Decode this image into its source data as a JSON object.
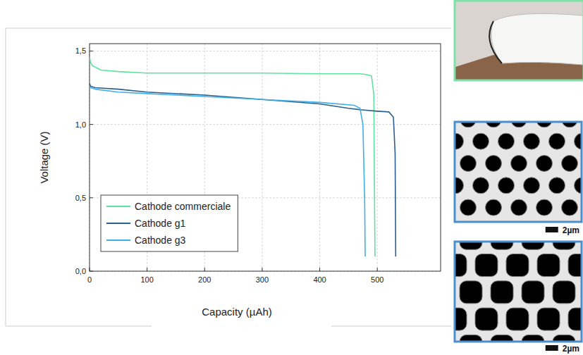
{
  "chart_data": {
    "type": "line",
    "x_label": "Capacity (µAh)",
    "y_label": "Voltage (V)",
    "xlim": [
      0,
      610
    ],
    "ylim": [
      0,
      1.55
    ],
    "xticks": [
      0,
      100,
      200,
      300,
      400,
      500
    ],
    "yticks": [
      {
        "value": 0,
        "label": "0,0"
      },
      {
        "value": 0.5,
        "label": "0,5"
      },
      {
        "value": 1.0,
        "label": "1,0"
      },
      {
        "value": 1.5,
        "label": "1,5"
      }
    ],
    "grid": true,
    "legend": "lower left",
    "series": [
      {
        "name": "Cathode commerciale",
        "color": "#5fe3a0",
        "x": [
          0,
          2,
          5,
          20,
          50,
          100,
          200,
          300,
          400,
          470,
          480,
          490,
          494,
          495,
          496
        ],
        "values": [
          1.46,
          1.42,
          1.4,
          1.37,
          1.36,
          1.35,
          1.35,
          1.35,
          1.345,
          1.345,
          1.34,
          1.33,
          1.2,
          0.6,
          0.1
        ]
      },
      {
        "name": "Cathode g1",
        "color": "#2b5f8e",
        "x": [
          0,
          2,
          10,
          50,
          100,
          200,
          300,
          400,
          450,
          470,
          500,
          520,
          528,
          531,
          532
        ],
        "values": [
          1.28,
          1.26,
          1.25,
          1.24,
          1.22,
          1.2,
          1.17,
          1.14,
          1.11,
          1.1,
          1.09,
          1.085,
          1.05,
          0.8,
          0.1
        ]
      },
      {
        "name": "Cathode g3",
        "color": "#3fb0e8",
        "x": [
          0,
          2,
          10,
          50,
          100,
          200,
          300,
          400,
          460,
          470,
          475,
          478,
          479
        ],
        "values": [
          1.26,
          1.25,
          1.24,
          1.22,
          1.21,
          1.19,
          1.17,
          1.15,
          1.13,
          1.11,
          1.0,
          0.5,
          0.1
        ]
      }
    ]
  },
  "images": {
    "scale_bars": [
      "2µm",
      "2µm"
    ]
  }
}
